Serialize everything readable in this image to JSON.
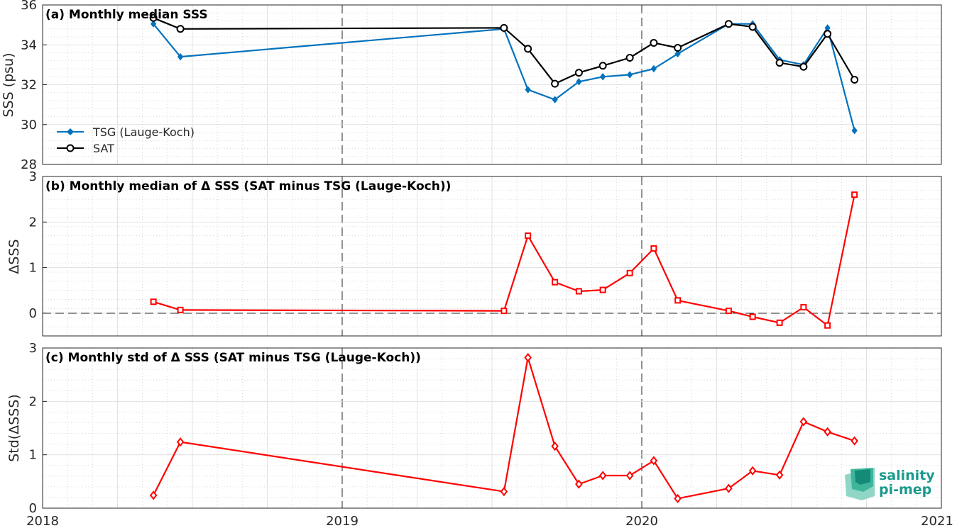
{
  "colors": {
    "tsg": "#0072bd",
    "sat": "#000000",
    "delta": "#ff0000"
  },
  "logo": {
    "line1": "salinity",
    "line2": "pi-mep",
    "icon": "salinity-pimep-logo-icon"
  },
  "chart_data": [
    {
      "type": "line",
      "title": "(a) Monthly median SSS",
      "ylabel": "SSS (psu)",
      "xlabel": "",
      "xlim": [
        2018.0,
        2021.0
      ],
      "ylim": [
        28,
        36
      ],
      "xticks": [
        "2018",
        "2019",
        "2020",
        "2021"
      ],
      "yticks": [
        "28",
        "30",
        "32",
        "34",
        "36"
      ],
      "legend": {
        "position": "bottom-left"
      },
      "grid": true,
      "series": [
        {
          "name": "TSG (Lauge-Koch)",
          "marker": "diamond",
          "color": "#0072bd",
          "x": [
            2018.37,
            2018.46,
            2019.54,
            2019.62,
            2019.71,
            2019.79,
            2019.87,
            2019.96,
            2020.04,
            2020.12,
            2020.29,
            2020.37,
            2020.46,
            2020.54,
            2020.62,
            2020.71
          ],
          "y": [
            35.05,
            33.4,
            34.8,
            31.75,
            31.25,
            32.15,
            32.4,
            32.5,
            32.8,
            33.55,
            35.05,
            35.05,
            33.25,
            33.0,
            34.85,
            29.7
          ]
        },
        {
          "name": "SAT",
          "marker": "circle",
          "color": "#000000",
          "x": [
            2018.37,
            2018.46,
            2019.54,
            2019.62,
            2019.71,
            2019.79,
            2019.87,
            2019.96,
            2020.04,
            2020.12,
            2020.29,
            2020.37,
            2020.46,
            2020.54,
            2020.62,
            2020.71
          ],
          "y": [
            35.35,
            34.8,
            34.85,
            33.8,
            32.05,
            32.6,
            32.95,
            33.35,
            34.1,
            33.85,
            35.05,
            34.9,
            33.1,
            32.9,
            34.55,
            32.25
          ]
        }
      ]
    },
    {
      "type": "line",
      "title": "(b) Monthly median of Δ SSS (SAT minus TSG (Lauge-Koch))",
      "ylabel": "ΔSSS",
      "xlabel": "",
      "xlim": [
        2018.0,
        2021.0
      ],
      "ylim": [
        -0.5,
        3
      ],
      "yticks": [
        "0",
        "1",
        "2",
        "3"
      ],
      "grid": true,
      "series": [
        {
          "marker": "square",
          "color": "#ff0000",
          "x": [
            2018.37,
            2018.46,
            2019.54,
            2019.62,
            2019.71,
            2019.79,
            2019.87,
            2019.96,
            2020.04,
            2020.12,
            2020.29,
            2020.37,
            2020.46,
            2020.54,
            2020.62,
            2020.71
          ],
          "y": [
            0.25,
            0.07,
            0.05,
            1.7,
            0.68,
            0.48,
            0.51,
            0.88,
            1.42,
            0.28,
            0.05,
            -0.08,
            -0.21,
            0.13,
            -0.27,
            2.6
          ]
        }
      ]
    },
    {
      "type": "line",
      "title": "(c) Monthly std of Δ SSS (SAT minus TSG (Lauge-Koch))",
      "ylabel": "Std(ΔSSS)",
      "xlabel": "",
      "xlim": [
        2018.0,
        2021.0
      ],
      "ylim": [
        0,
        3
      ],
      "xticks": [
        "2018",
        "2019",
        "2020",
        "2021"
      ],
      "yticks": [
        "0",
        "1",
        "2",
        "3"
      ],
      "grid": true,
      "series": [
        {
          "marker": "diamond",
          "color": "#ff0000",
          "x": [
            2018.37,
            2018.46,
            2019.54,
            2019.62,
            2019.71,
            2019.79,
            2019.87,
            2019.96,
            2020.04,
            2020.12,
            2020.29,
            2020.37,
            2020.46,
            2020.54,
            2020.62,
            2020.71
          ],
          "y": [
            0.24,
            1.24,
            0.31,
            2.82,
            1.16,
            0.45,
            0.61,
            0.61,
            0.89,
            0.18,
            0.37,
            0.7,
            0.62,
            1.62,
            1.43,
            1.26
          ]
        }
      ]
    }
  ]
}
